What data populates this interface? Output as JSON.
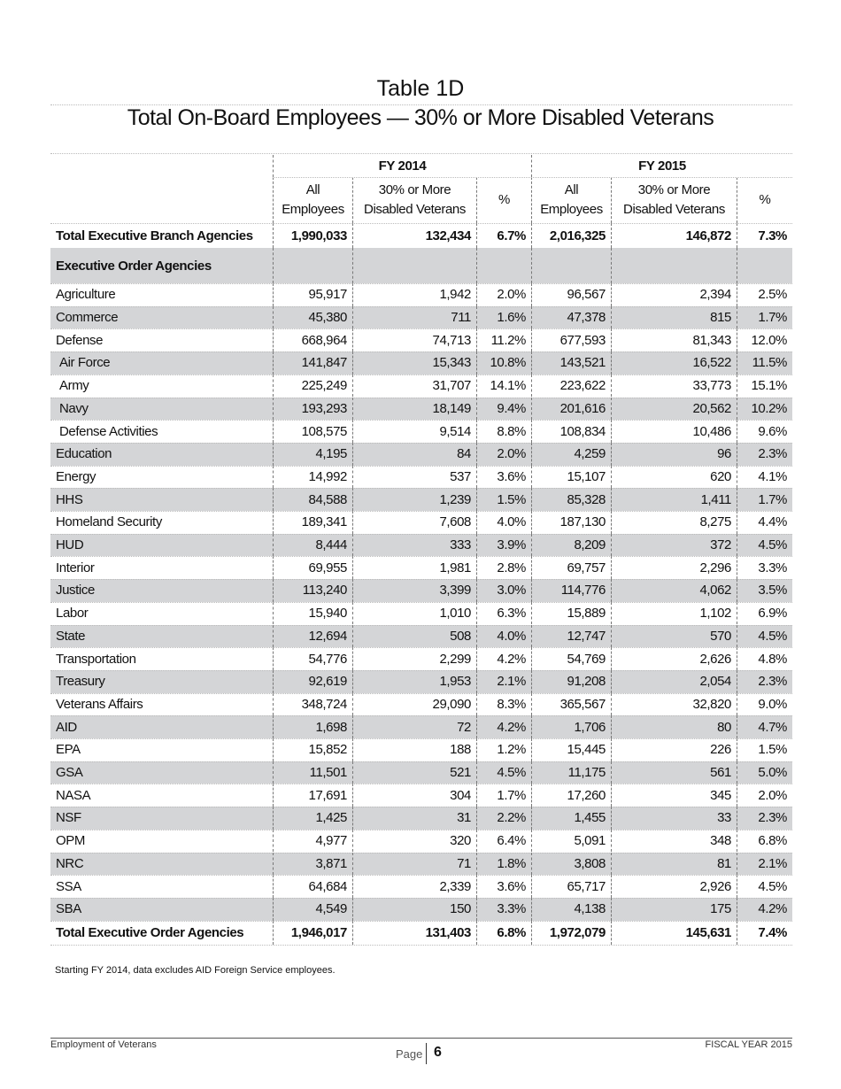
{
  "header": {
    "title": "Table 1D",
    "subtitle": "Total On-Board Employees — 30% or More Disabled Veterans"
  },
  "table": {
    "groups": [
      "FY 2014",
      "FY 2015"
    ],
    "columns": [
      "All Employees",
      "30% or More Disabled Veterans",
      "%",
      "All Employees",
      "30% or More Disabled Veterans",
      "%"
    ],
    "total_branch": {
      "label": "Total Executive Branch Agencies",
      "values": [
        "1,990,033",
        "132,434",
        "6.7%",
        "2,016,325",
        "146,872",
        "7.3%"
      ]
    },
    "section_label": "Executive Order Agencies",
    "rows": [
      {
        "label": "Agriculture",
        "values": [
          "95,917",
          "1,942",
          "2.0%",
          "96,567",
          "2,394",
          "2.5%"
        ]
      },
      {
        "label": "Commerce",
        "values": [
          "45,380",
          "711",
          "1.6%",
          "47,378",
          "815",
          "1.7%"
        ]
      },
      {
        "label": "Defense",
        "values": [
          "668,964",
          "74,713",
          "11.2%",
          "677,593",
          "81,343",
          "12.0%"
        ]
      },
      {
        "label": "Air Force",
        "indent": true,
        "values": [
          "141,847",
          "15,343",
          "10.8%",
          "143,521",
          "16,522",
          "11.5%"
        ]
      },
      {
        "label": "Army",
        "indent": true,
        "values": [
          "225,249",
          "31,707",
          "14.1%",
          "223,622",
          "33,773",
          "15.1%"
        ]
      },
      {
        "label": "Navy",
        "indent": true,
        "values": [
          "193,293",
          "18,149",
          "9.4%",
          "201,616",
          "20,562",
          "10.2%"
        ]
      },
      {
        "label": "Defense Activities",
        "indent": true,
        "values": [
          "108,575",
          "9,514",
          "8.8%",
          "108,834",
          "10,486",
          "9.6%"
        ]
      },
      {
        "label": "Education",
        "values": [
          "4,195",
          "84",
          "2.0%",
          "4,259",
          "96",
          "2.3%"
        ]
      },
      {
        "label": "Energy",
        "values": [
          "14,992",
          "537",
          "3.6%",
          "15,107",
          "620",
          "4.1%"
        ]
      },
      {
        "label": "HHS",
        "values": [
          "84,588",
          "1,239",
          "1.5%",
          "85,328",
          "1,411",
          "1.7%"
        ]
      },
      {
        "label": "Homeland Security",
        "values": [
          "189,341",
          "7,608",
          "4.0%",
          "187,130",
          "8,275",
          "4.4%"
        ]
      },
      {
        "label": "HUD",
        "values": [
          "8,444",
          "333",
          "3.9%",
          "8,209",
          "372",
          "4.5%"
        ]
      },
      {
        "label": "Interior",
        "values": [
          "69,955",
          "1,981",
          "2.8%",
          "69,757",
          "2,296",
          "3.3%"
        ]
      },
      {
        "label": "Justice",
        "values": [
          "113,240",
          "3,399",
          "3.0%",
          "114,776",
          "4,062",
          "3.5%"
        ]
      },
      {
        "label": "Labor",
        "values": [
          "15,940",
          "1,010",
          "6.3%",
          "15,889",
          "1,102",
          "6.9%"
        ]
      },
      {
        "label": "State",
        "values": [
          "12,694",
          "508",
          "4.0%",
          "12,747",
          "570",
          "4.5%"
        ]
      },
      {
        "label": "Transportation",
        "values": [
          "54,776",
          "2,299",
          "4.2%",
          "54,769",
          "2,626",
          "4.8%"
        ]
      },
      {
        "label": "Treasury",
        "values": [
          "92,619",
          "1,953",
          "2.1%",
          "91,208",
          "2,054",
          "2.3%"
        ]
      },
      {
        "label": "Veterans Affairs",
        "values": [
          "348,724",
          "29,090",
          "8.3%",
          "365,567",
          "32,820",
          "9.0%"
        ]
      },
      {
        "label": "AID",
        "values": [
          "1,698",
          "72",
          "4.2%",
          "1,706",
          "80",
          "4.7%"
        ]
      },
      {
        "label": "EPA",
        "values": [
          "15,852",
          "188",
          "1.2%",
          "15,445",
          "226",
          "1.5%"
        ]
      },
      {
        "label": "GSA",
        "values": [
          "11,501",
          "521",
          "4.5%",
          "11,175",
          "561",
          "5.0%"
        ]
      },
      {
        "label": "NASA",
        "values": [
          "17,691",
          "304",
          "1.7%",
          "17,260",
          "345",
          "2.0%"
        ]
      },
      {
        "label": "NSF",
        "values": [
          "1,425",
          "31",
          "2.2%",
          "1,455",
          "33",
          "2.3%"
        ]
      },
      {
        "label": "OPM",
        "values": [
          "4,977",
          "320",
          "6.4%",
          "5,091",
          "348",
          "6.8%"
        ]
      },
      {
        "label": "NRC",
        "values": [
          "3,871",
          "71",
          "1.8%",
          "3,808",
          "81",
          "2.1%"
        ]
      },
      {
        "label": "SSA",
        "values": [
          "64,684",
          "2,339",
          "3.6%",
          "65,717",
          "2,926",
          "4.5%"
        ]
      },
      {
        "label": "SBA",
        "values": [
          "4,549",
          "150",
          "3.3%",
          "4,138",
          "175",
          "4.2%"
        ]
      }
    ],
    "total_order": {
      "label": "Total Executive Order Agencies",
      "values": [
        "1,946,017",
        "131,403",
        "6.8%",
        "1,972,079",
        "145,631",
        "7.4%"
      ]
    }
  },
  "footnote": "Starting FY 2014, data excludes AID Foreign Service employees.",
  "footer": {
    "left": "Employment of Veterans",
    "page_label": "Page",
    "page_number": "6",
    "right": "FISCAL YEAR 2015"
  }
}
